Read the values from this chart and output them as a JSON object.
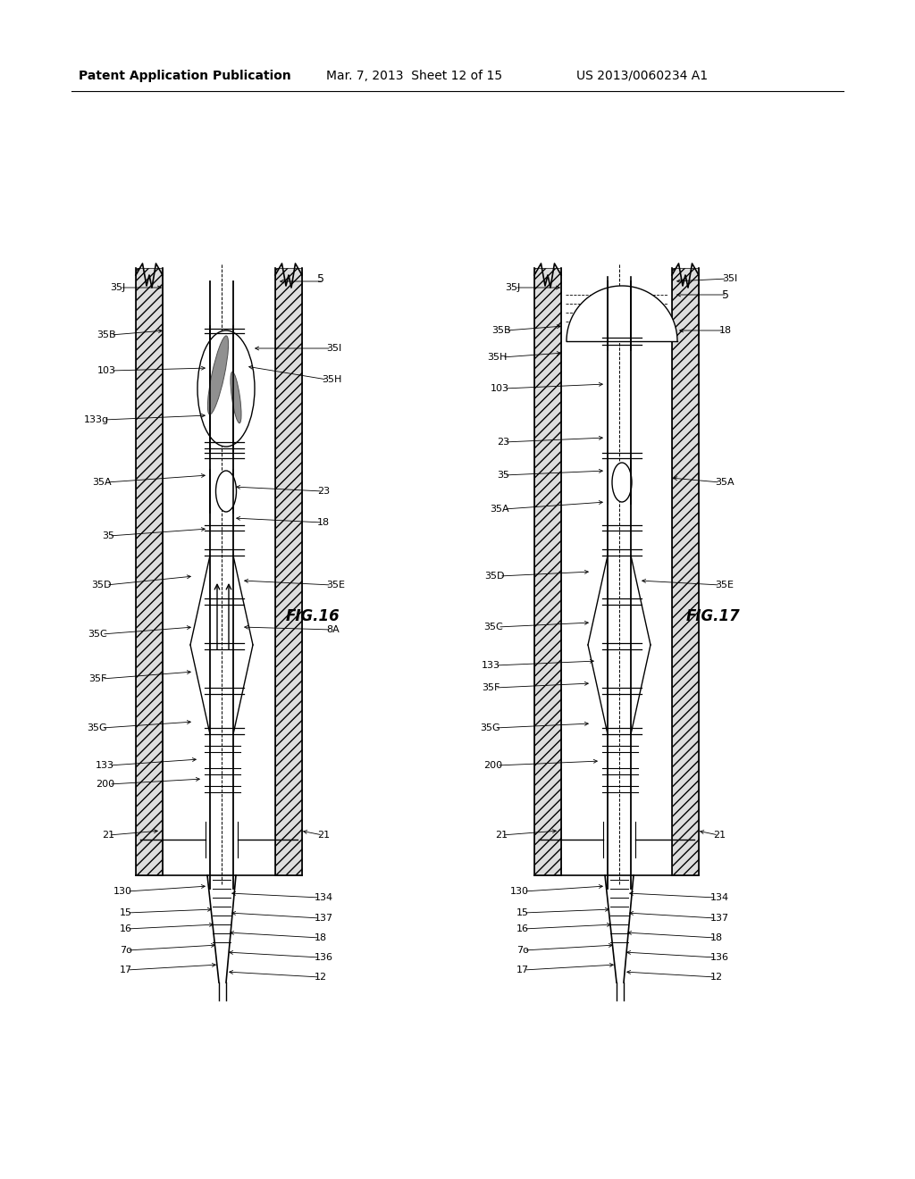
{
  "bg_color": "#ffffff",
  "header_left": "Patent Application Publication",
  "header_mid": "Mar. 7, 2013  Sheet 12 of 15",
  "header_right": "US 2013/0060234 A1",
  "fig16_label": "FIG.16",
  "fig17_label": "FIG.17"
}
